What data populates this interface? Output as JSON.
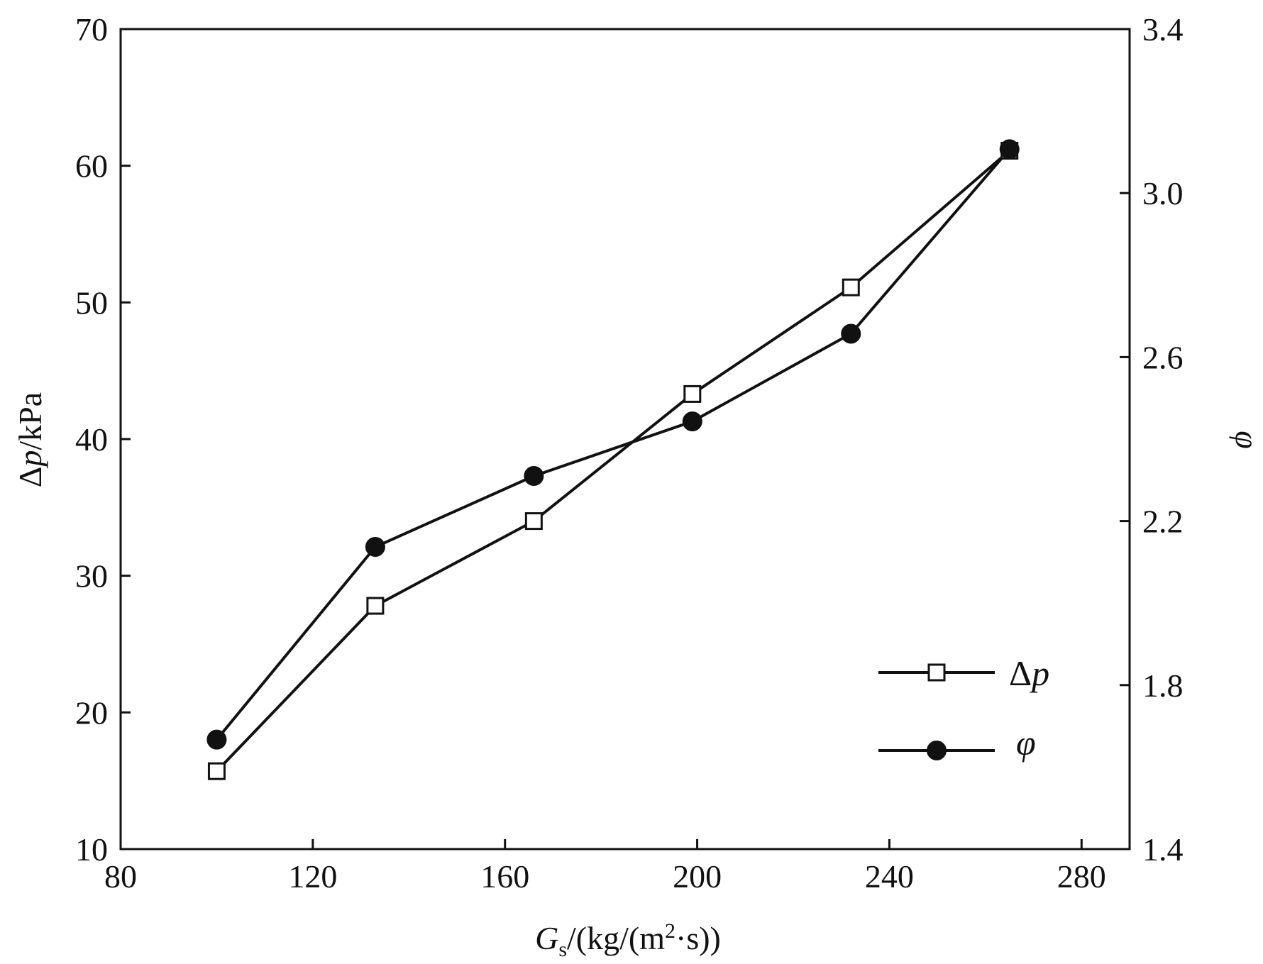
{
  "chart_data": {
    "type": "line",
    "x": [
      100,
      133,
      166,
      199,
      232,
      265
    ],
    "xlabel": {
      "sym": "G",
      "sub": "s",
      "unit": "/(kg/(m",
      "sup": "2",
      "tail": "·s))"
    },
    "ylabel_left": {
      "sym": "Δ",
      "ital": "p",
      "unit": "/kPa"
    },
    "ylabel_right": "φ",
    "xlim": [
      80,
      290
    ],
    "ylim_left": [
      10,
      70
    ],
    "ylim_right": [
      1.4,
      3.4
    ],
    "xticks": [
      "80",
      "120",
      "160",
      "200",
      "240",
      "280"
    ],
    "xtick_values": [
      80,
      120,
      160,
      200,
      240,
      280
    ],
    "yticks_left": [
      "10",
      "20",
      "30",
      "40",
      "50",
      "60",
      "70"
    ],
    "ytick_values_left": [
      10,
      20,
      30,
      40,
      50,
      60,
      70
    ],
    "yticks_right": [
      "1.4",
      "1.8",
      "2.2",
      "2.6",
      "3.0",
      "3.4"
    ],
    "ytick_values_right": [
      1.4,
      1.8,
      2.2,
      2.6,
      3.0,
      3.4
    ],
    "series": [
      {
        "name": "Δp",
        "name_sym": "Δ",
        "name_ital": "p",
        "axis": "left",
        "marker": "open-square",
        "values": [
          15.7,
          27.8,
          34.0,
          43.3,
          51.1,
          61.1
        ]
      },
      {
        "name": "φ",
        "axis": "right",
        "marker": "filled-circle",
        "values": [
          1.667,
          2.137,
          2.31,
          2.443,
          2.657,
          3.107
        ]
      }
    ],
    "legend_position": "lower-right",
    "grid": false
  }
}
